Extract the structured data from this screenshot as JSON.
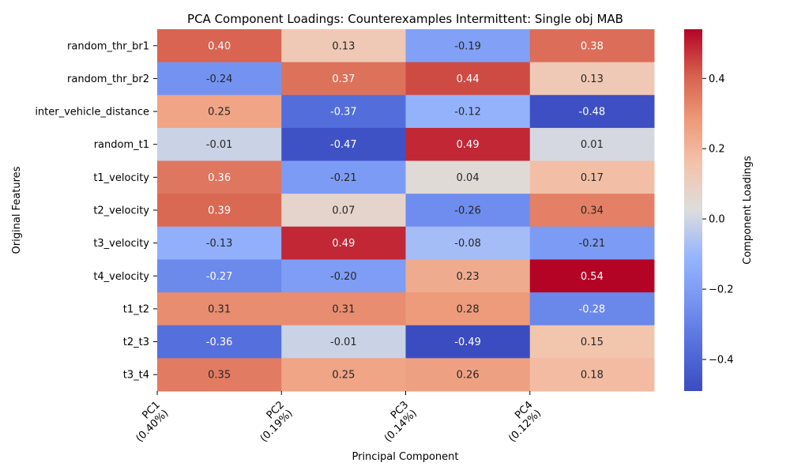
{
  "chart_data": {
    "type": "heatmap",
    "title": "PCA Component Loadings: Counterexamples Intermittent: Single obj MAB",
    "xlabel": "Principal Component",
    "ylabel": "Original Features",
    "colorbar_label": "Component Loadings",
    "colormap": "coolwarm",
    "x_categories": [
      "PC1\n(0.40%)",
      "PC2\n(0.19%)",
      "PC3\n(0.14%)",
      "PC4\n(0.12%)"
    ],
    "y_categories": [
      "random_thr_br1",
      "random_thr_br2",
      "inter_vehicle_distance",
      "random_t1",
      "t1_velocity",
      "t2_velocity",
      "t3_velocity",
      "t4_velocity",
      "t1_t2",
      "t2_t3",
      "t3_t4"
    ],
    "values": [
      [
        0.4,
        0.13,
        -0.19,
        0.38
      ],
      [
        -0.24,
        0.37,
        0.44,
        0.13
      ],
      [
        0.25,
        -0.37,
        -0.12,
        -0.48
      ],
      [
        -0.01,
        -0.47,
        0.49,
        0.01
      ],
      [
        0.36,
        -0.21,
        0.04,
        0.17
      ],
      [
        0.39,
        0.07,
        -0.26,
        0.34
      ],
      [
        -0.13,
        0.49,
        -0.08,
        -0.21
      ],
      [
        -0.27,
        -0.2,
        0.23,
        0.54
      ],
      [
        0.31,
        0.31,
        0.28,
        -0.28
      ],
      [
        -0.36,
        -0.01,
        -0.49,
        0.15
      ],
      [
        0.35,
        0.25,
        0.26,
        0.18
      ]
    ],
    "value_labels_format": "2f",
    "vmin": -0.49,
    "vmax": 0.54,
    "colorbar_ticks": [
      "0.4",
      "0.2",
      "0.0",
      "−0.2",
      "−0.4"
    ],
    "colorbar_tick_values": [
      0.4,
      0.2,
      0.0,
      -0.2,
      -0.4
    ]
  }
}
